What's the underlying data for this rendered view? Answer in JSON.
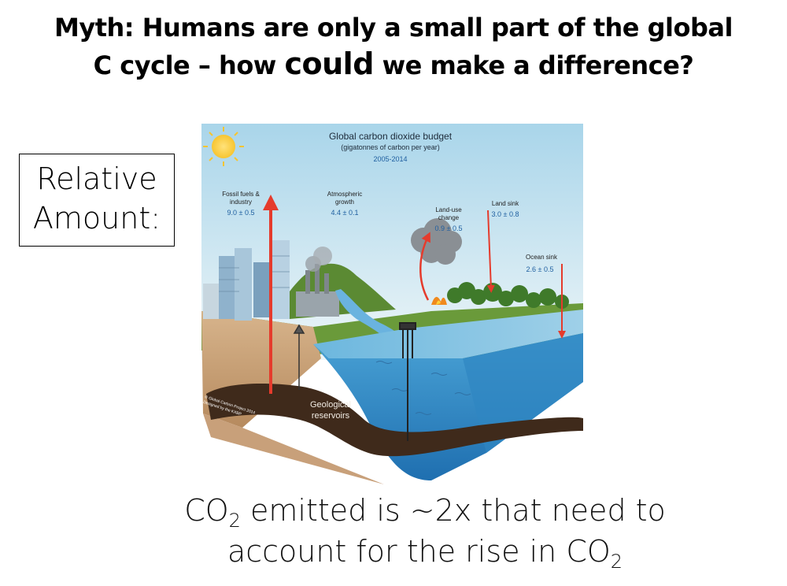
{
  "title": {
    "line1": "Myth: Humans are only a small part of the global",
    "line2_pre": "C cycle – how ",
    "line2_emph": "could",
    "line2_post": " we make a difference?"
  },
  "relative_box": {
    "line1": "Relative",
    "line2": "Amount:"
  },
  "diagram": {
    "title": "Global carbon dioxide budget",
    "subtitle": "(gigatonnes of carbon per year)",
    "period": "2005-2014",
    "fluxes": [
      {
        "label_line1": "Fossil fuels &",
        "label_line2": "industry",
        "value": "9.0 ± 0.5",
        "direction": "up"
      },
      {
        "label_line1": "Atmospheric",
        "label_line2": "growth",
        "value": "4.4 ± 0.1",
        "direction": "none"
      },
      {
        "label_line1": "Land-use",
        "label_line2": "change",
        "value": "0.9 ± 0.5",
        "direction": "up"
      },
      {
        "label_line1": "Land sink",
        "label_line2": "",
        "value": "3.0 ± 0.8",
        "direction": "down"
      },
      {
        "label_line1": "Ocean sink",
        "label_line2": "",
        "value": "2.6 ± 0.5",
        "direction": "down"
      }
    ],
    "reservoir_line1": "Geological",
    "reservoir_line2": "reservoirs",
    "credit_line1": "© Global Carbon Project 2014",
    "credit_line2": "Designed by the KXBP",
    "colors": {
      "arrow": "#e53b2c",
      "sky": "#bfe0ee",
      "ocean": "#3b97cf",
      "soil": "#c9a27a",
      "rock": "#4a3221"
    }
  },
  "bottom": {
    "line1_pre": "CO",
    "line1_sub": "2",
    "line1_post": " emitted is ~2x that need to",
    "line2_pre": "account for the rise in CO",
    "line2_sub": "2"
  }
}
